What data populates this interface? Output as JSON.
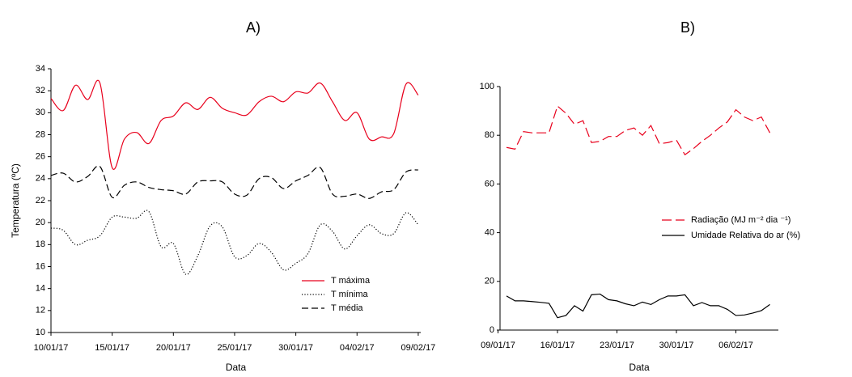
{
  "chart_data": [
    {
      "type": "line",
      "title": "A)",
      "xlabel": "Data",
      "ylabel": "Temperatura (ºC)",
      "x": [
        "10/01/17",
        "11/01/17",
        "12/01/17",
        "13/01/17",
        "14/01/17",
        "15/01/17",
        "16/01/17",
        "17/01/17",
        "18/01/17",
        "19/01/17",
        "20/01/17",
        "21/01/17",
        "22/01/17",
        "23/01/17",
        "24/01/17",
        "25/01/17",
        "26/01/17",
        "27/01/17",
        "28/01/17",
        "29/01/17",
        "30/01/17",
        "31/01/17",
        "01/02/17",
        "02/02/17",
        "03/02/17",
        "04/02/17",
        "05/02/17",
        "06/02/17",
        "07/02/17",
        "08/02/17",
        "09/02/17"
      ],
      "xticks": [
        "10/01/17",
        "15/01/17",
        "20/01/17",
        "25/01/17",
        "30/01/17",
        "04/02/17",
        "09/02/17"
      ],
      "ylim": [
        10,
        34
      ],
      "yticks": [
        10,
        12,
        14,
        16,
        18,
        20,
        22,
        24,
        26,
        28,
        30,
        32,
        34
      ],
      "series": [
        {
          "name": "T máxima",
          "color": "#e8001c",
          "line_style": "solid",
          "values": [
            31.3,
            30.2,
            32.5,
            31.2,
            32.7,
            25.0,
            27.6,
            28.2,
            27.2,
            29.3,
            29.7,
            30.9,
            30.3,
            31.4,
            30.4,
            30.0,
            29.8,
            31.0,
            31.5,
            31.0,
            31.9,
            31.8,
            32.7,
            31.0,
            29.3,
            30.0,
            27.6,
            27.8,
            28.1,
            32.6,
            31.6
          ]
        },
        {
          "name": "T mínima",
          "color": "#000000",
          "line_style": "dotted",
          "values": [
            19.5,
            19.3,
            18.0,
            18.4,
            18.8,
            20.5,
            20.5,
            20.4,
            21.0,
            17.8,
            18.1,
            15.3,
            17.0,
            19.7,
            19.6,
            16.9,
            17.0,
            18.1,
            17.3,
            15.7,
            16.3,
            17.2,
            19.8,
            19.2,
            17.6,
            18.8,
            19.8,
            19.0,
            19.0,
            20.9,
            19.8
          ]
        },
        {
          "name": "T média",
          "color": "#000000",
          "line_style": "dashed",
          "values": [
            24.3,
            24.5,
            23.7,
            24.2,
            25.1,
            22.3,
            23.4,
            23.7,
            23.2,
            23.0,
            22.9,
            22.6,
            23.7,
            23.8,
            23.7,
            22.6,
            22.5,
            24.0,
            24.1,
            23.1,
            23.8,
            24.3,
            25.0,
            22.6,
            22.4,
            22.6,
            22.2,
            22.8,
            23.0,
            24.6,
            24.8
          ]
        }
      ],
      "smooth": true,
      "grid": false,
      "legend": "lower right"
    },
    {
      "type": "line",
      "title": "B)",
      "xlabel": "Data",
      "x": [
        "10/01/17",
        "11/01/17",
        "12/01/17",
        "13/01/17",
        "14/01/17",
        "15/01/17",
        "16/01/17",
        "17/01/17",
        "18/01/17",
        "19/01/17",
        "20/01/17",
        "21/01/17",
        "22/01/17",
        "23/01/17",
        "24/01/17",
        "25/01/17",
        "26/01/17",
        "27/01/17",
        "28/01/17",
        "29/01/17",
        "30/01/17",
        "31/01/17",
        "01/02/17",
        "02/02/17",
        "03/02/17",
        "04/02/17",
        "05/02/17",
        "06/02/17",
        "07/02/17",
        "08/02/17",
        "09/02/17",
        "10/02/17"
      ],
      "xticks": [
        "09/01/17",
        "16/01/17",
        "23/01/17",
        "30/01/17",
        "06/02/17"
      ],
      "ylim": [
        0,
        100
      ],
      "yticks": [
        0,
        20,
        40,
        60,
        80,
        100
      ],
      "series": [
        {
          "name": "Radiação (MJ m⁻² dia ⁻¹)",
          "color": "#e8001c",
          "line_style": "longdash",
          "values": [
            75,
            74.3,
            81.5,
            81,
            81,
            81,
            92,
            89,
            84.5,
            86,
            77,
            77.5,
            79.5,
            79.5,
            82,
            83,
            80,
            84,
            76.5,
            77,
            78,
            72,
            74.5,
            77.5,
            80,
            83,
            85.5,
            90.5,
            87.5,
            86,
            87.5,
            81
          ]
        },
        {
          "name": "Umidade Relativa do ar (%)",
          "color": "#000000",
          "line_style": "solid",
          "values": [
            14,
            12,
            12,
            11.7,
            11.4,
            11,
            5.1,
            6,
            10,
            7.8,
            14.5,
            14.8,
            12.5,
            12,
            10.8,
            10,
            11.5,
            10.5,
            12.5,
            14,
            14,
            14.5,
            10,
            11.3,
            10,
            10,
            8.5,
            6,
            6.2,
            7,
            8,
            10.5
          ]
        }
      ],
      "smooth": false,
      "grid": false,
      "legend": "center right"
    }
  ]
}
